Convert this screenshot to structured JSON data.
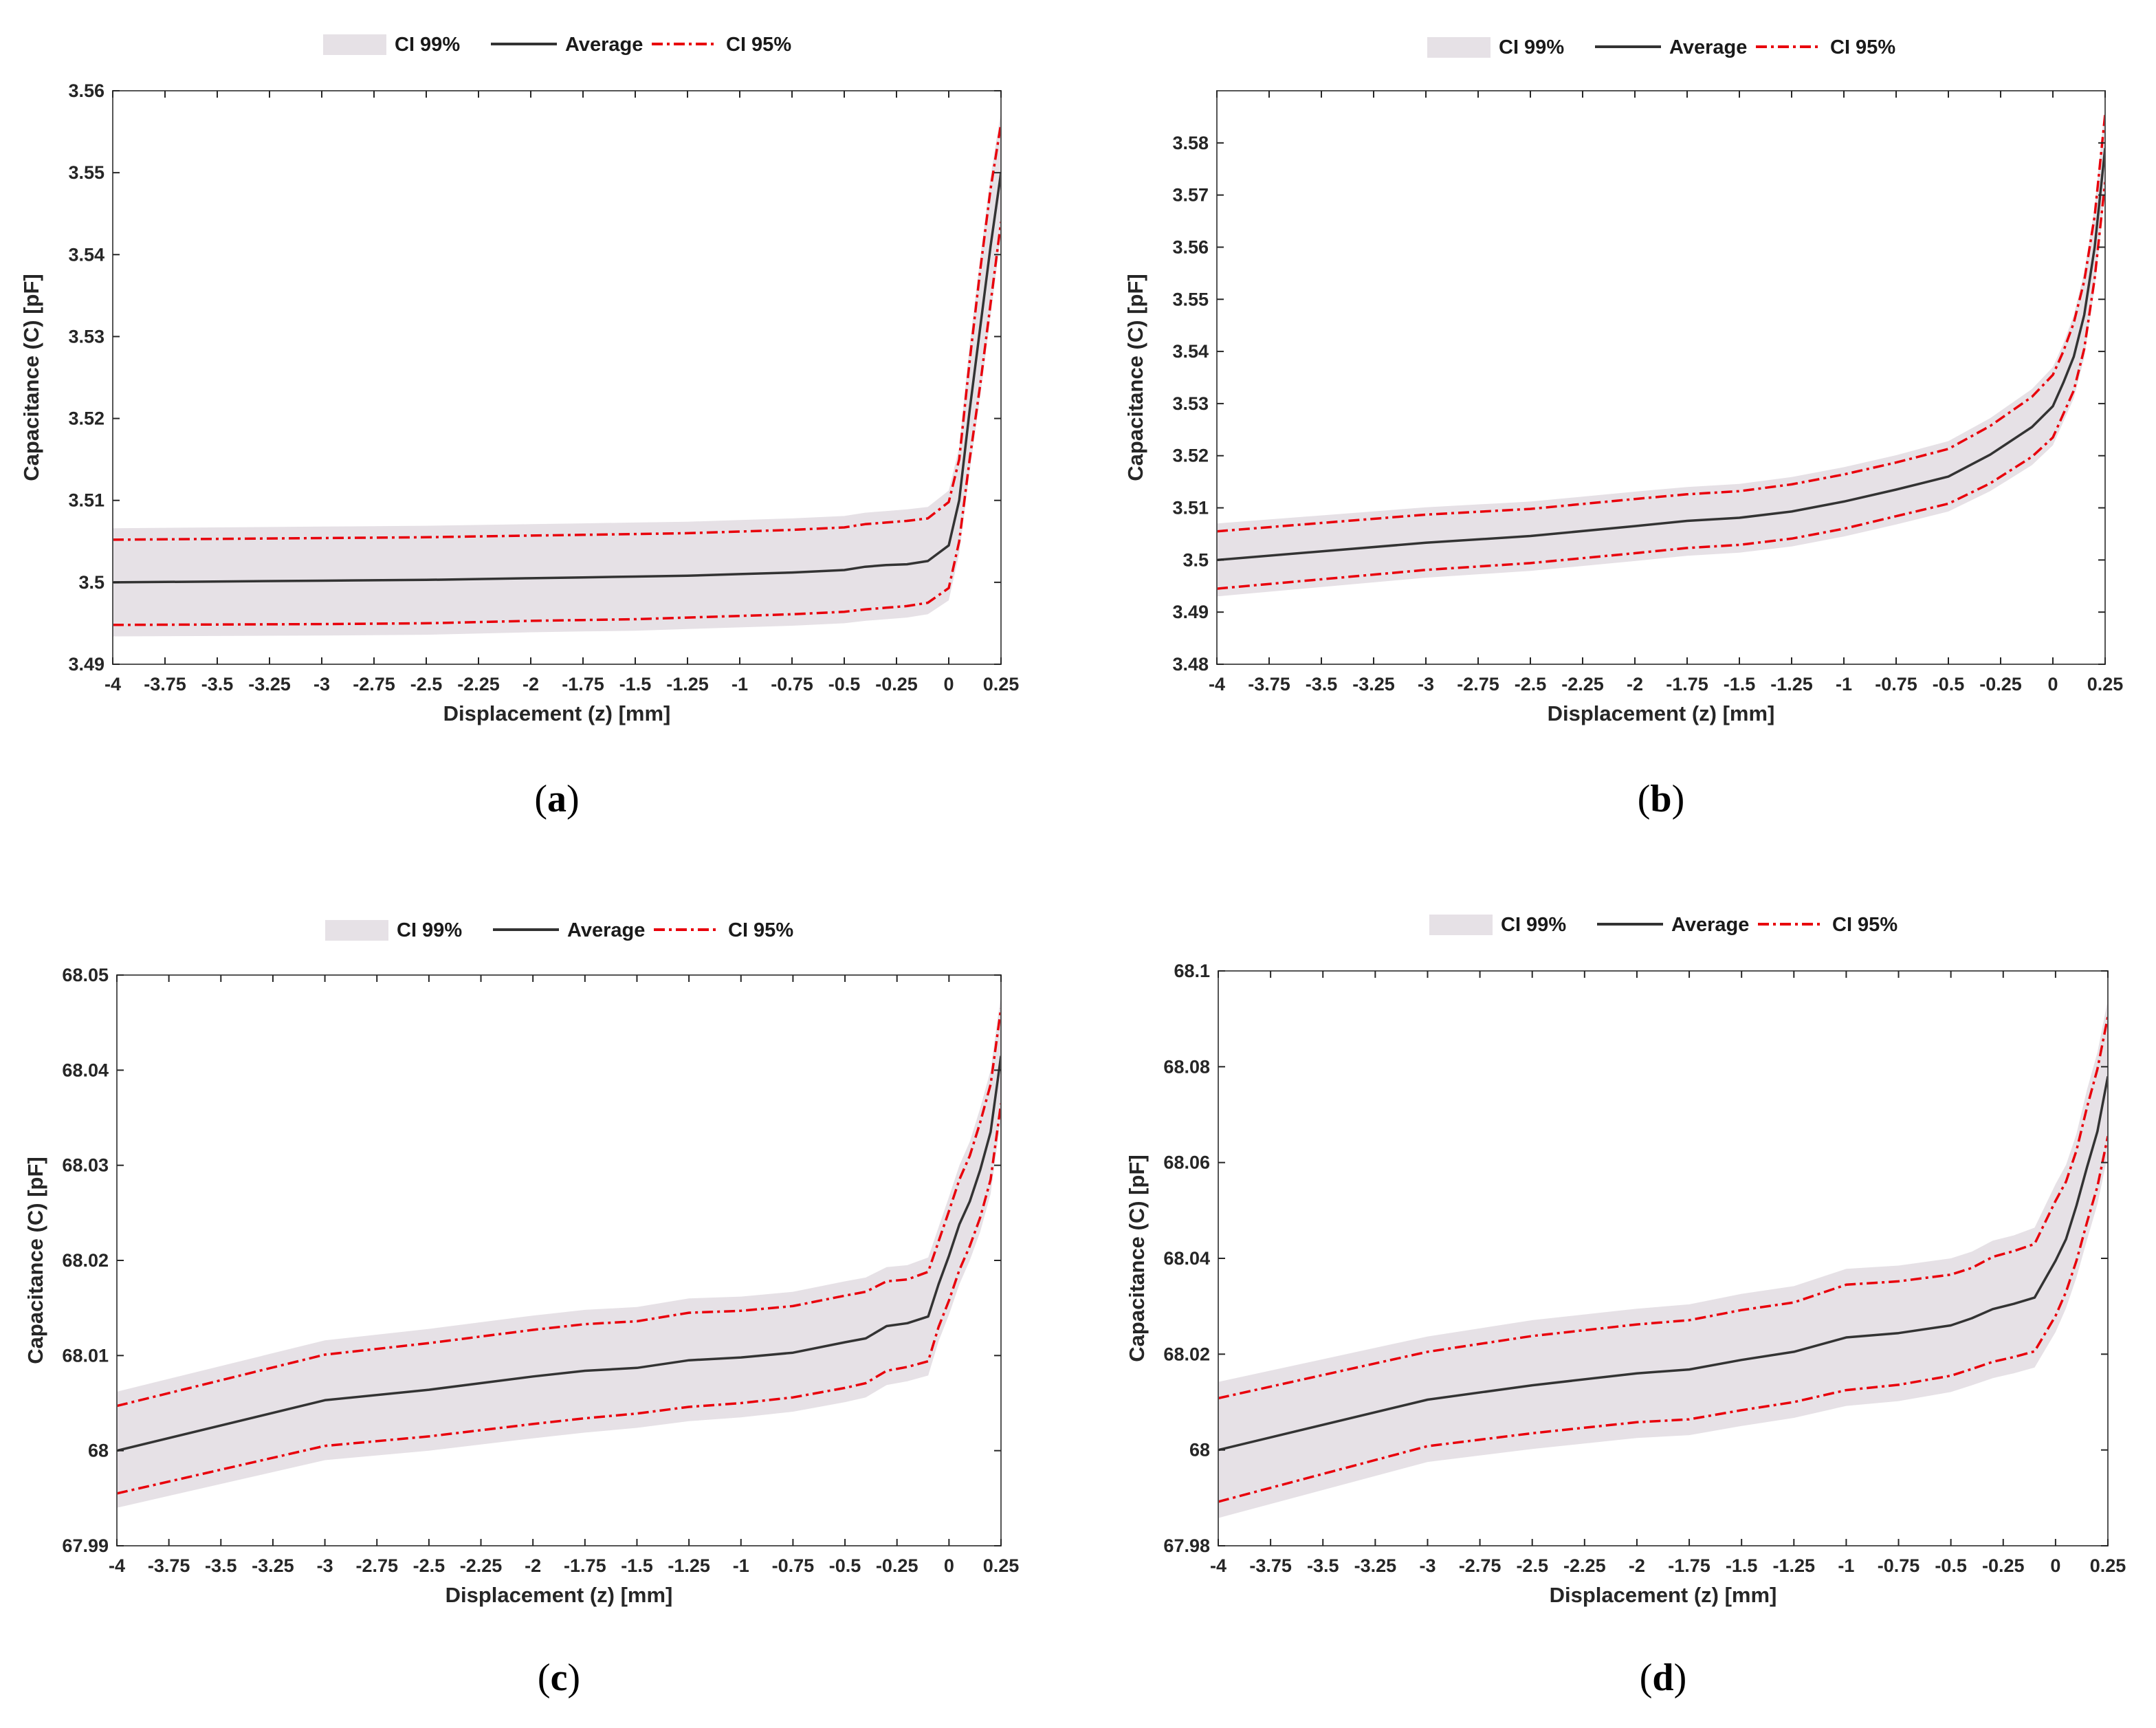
{
  "colors": {
    "band99": "#e6e1e6",
    "average": "#333333",
    "ci95": "#e8000b",
    "axis": "#262626",
    "frame": "#555555"
  },
  "legend": {
    "ci99": "CI 99%",
    "average": "Average",
    "ci95": "CI 95%"
  },
  "chart_data": [
    {
      "id": "a",
      "type": "line",
      "caption": "a",
      "xlabel": "Displacement (z) [mm]",
      "ylabel": "Capacitance (C) [pF]",
      "xlim": [
        -4,
        0.25
      ],
      "ylim": [
        3.49,
        3.56
      ],
      "xticks": [
        -4,
        -3.75,
        -3.5,
        -3.25,
        -3,
        -2.75,
        -2.5,
        -2.25,
        -2,
        -1.75,
        -1.5,
        -1.25,
        -1,
        -0.75,
        -0.5,
        -0.25,
        0,
        0.25
      ],
      "xtick_labels": [
        "-4",
        "-3.75",
        "-3.5",
        "-3.25",
        "-3",
        "-2.75",
        "-2.5",
        "-2.25",
        "-2",
        "-1.75",
        "-1.5",
        "-1.25",
        "-1",
        "-0.75",
        "-0.5",
        "-0.25",
        "0",
        "0.25"
      ],
      "yticks": [
        3.49,
        3.5,
        3.51,
        3.52,
        3.53,
        3.54,
        3.55,
        3.56
      ],
      "ytick_labels": [
        "3.49",
        "3.5",
        "3.51",
        "3.52",
        "3.53",
        "3.54",
        "3.55",
        "3.56"
      ],
      "x": [
        -4,
        -3,
        -2.5,
        -2,
        -1.75,
        -1.5,
        -1.25,
        -1,
        -0.75,
        -0.5,
        -0.4,
        -0.3,
        -0.2,
        -0.1,
        0,
        0.05,
        0.1,
        0.15,
        0.2,
        0.25
      ],
      "series": [
        {
          "name": "Average",
          "values": [
            3.5,
            3.5002,
            3.5003,
            3.5005,
            3.5006,
            3.5007,
            3.5008,
            3.501,
            3.5012,
            3.5015,
            3.5019,
            3.5021,
            3.5022,
            3.5026,
            3.5045,
            3.51,
            3.521,
            3.531,
            3.541,
            3.55
          ]
        },
        {
          "name": "CI 95% upper",
          "values": [
            3.5052,
            3.5054,
            3.5055,
            3.5057,
            3.5058,
            3.5059,
            3.506,
            3.5062,
            3.5064,
            3.5067,
            3.5071,
            3.5073,
            3.5075,
            3.5078,
            3.5098,
            3.515,
            3.527,
            3.538,
            3.548,
            3.556
          ]
        },
        {
          "name": "CI 95% lower",
          "values": [
            3.4948,
            3.4949,
            3.495,
            3.4953,
            3.4954,
            3.4955,
            3.4957,
            3.4959,
            3.4961,
            3.4964,
            3.4967,
            3.4969,
            3.4971,
            3.4975,
            3.4993,
            3.505,
            3.515,
            3.524,
            3.534,
            3.544
          ]
        },
        {
          "name": "CI 99% upper",
          "values": [
            3.5066,
            3.5068,
            3.5069,
            3.5071,
            3.5072,
            3.5073,
            3.5074,
            3.5076,
            3.5078,
            3.5081,
            3.5085,
            3.5087,
            3.5089,
            3.5092,
            3.5112,
            3.5165,
            3.529,
            3.5395,
            3.5495,
            3.5575
          ]
        },
        {
          "name": "CI 99% lower",
          "values": [
            3.4934,
            3.4935,
            3.4936,
            3.4939,
            3.494,
            3.4941,
            3.4943,
            3.4945,
            3.4947,
            3.495,
            3.4953,
            3.4955,
            3.4957,
            3.4961,
            3.4978,
            3.5035,
            3.5135,
            3.5225,
            3.5325,
            3.5425
          ]
        }
      ]
    },
    {
      "id": "b",
      "type": "line",
      "caption": "b",
      "xlabel": "Displacement (z) [mm]",
      "ylabel": "Capacitance (C) [pF]",
      "xlim": [
        -4,
        0.25
      ],
      "ylim": [
        3.48,
        3.59
      ],
      "xticks": [
        -4,
        -3.75,
        -3.5,
        -3.25,
        -3,
        -2.75,
        -2.5,
        -2.25,
        -2,
        -1.75,
        -1.5,
        -1.25,
        -1,
        -0.75,
        -0.5,
        -0.25,
        0,
        0.25
      ],
      "xtick_labels": [
        "-4",
        "-3.75",
        "-3.5",
        "-3.25",
        "-3",
        "-2.75",
        "-2.5",
        "-2.25",
        "-2",
        "-1.75",
        "-1.5",
        "-1.25",
        "-1",
        "-0.75",
        "-0.5",
        "-0.25",
        "0",
        "0.25"
      ],
      "yticks": [
        3.48,
        3.49,
        3.5,
        3.51,
        3.52,
        3.53,
        3.54,
        3.55,
        3.56,
        3.57,
        3.58
      ],
      "ytick_labels": [
        "3.48",
        "3.49",
        "3.5",
        "3.51",
        "3.52",
        "3.53",
        "3.54",
        "3.55",
        "3.56",
        "3.57",
        "3.58"
      ],
      "x": [
        -4,
        -3,
        -2.5,
        -2,
        -1.75,
        -1.5,
        -1.25,
        -1,
        -0.75,
        -0.5,
        -0.3,
        -0.1,
        0,
        0.05,
        0.1,
        0.15,
        0.2,
        0.25
      ],
      "series": [
        {
          "name": "Average",
          "values": [
            3.5,
            3.5033,
            3.5046,
            3.5065,
            3.5075,
            3.5081,
            3.5093,
            3.5112,
            3.5135,
            3.516,
            3.5202,
            3.5255,
            3.5295,
            3.534,
            3.539,
            3.547,
            3.56,
            3.579
          ]
        },
        {
          "name": "CI 95% upper",
          "values": [
            3.5055,
            3.5087,
            3.5098,
            3.5117,
            3.5126,
            3.5132,
            3.5145,
            3.5164,
            3.5187,
            3.5213,
            3.5257,
            3.5313,
            3.5355,
            3.54,
            3.5455,
            3.5535,
            3.566,
            3.5855
          ]
        },
        {
          "name": "CI 95% lower",
          "values": [
            3.4945,
            3.4981,
            3.4994,
            3.5013,
            3.5023,
            3.5029,
            3.5041,
            3.506,
            3.5084,
            3.5108,
            3.5147,
            3.5198,
            3.5235,
            3.528,
            3.5325,
            3.5405,
            3.554,
            3.5725
          ]
        },
        {
          "name": "CI 99% upper",
          "values": [
            3.507,
            3.5101,
            3.5112,
            3.5131,
            3.514,
            3.5146,
            3.5159,
            3.5178,
            3.5201,
            3.5228,
            3.5272,
            3.5328,
            3.537,
            3.5415,
            3.547,
            3.5552,
            3.5677,
            3.5872
          ]
        },
        {
          "name": "CI 99% lower",
          "values": [
            3.493,
            3.4966,
            3.4979,
            3.4998,
            3.5008,
            3.5014,
            3.5026,
            3.5045,
            3.5068,
            3.5093,
            3.5132,
            3.5182,
            3.522,
            3.5265,
            3.531,
            3.5388,
            3.5523,
            3.5708
          ]
        }
      ]
    },
    {
      "id": "c",
      "type": "line",
      "caption": "c",
      "xlabel": "Displacement (z) [mm]",
      "ylabel": "Capacitance (C) [pF]",
      "xlim": [
        -4,
        0.25
      ],
      "ylim": [
        67.99,
        68.05
      ],
      "xticks": [
        -4,
        -3.75,
        -3.5,
        -3.25,
        -3,
        -2.75,
        -2.5,
        -2.25,
        -2,
        -1.75,
        -1.5,
        -1.25,
        -1,
        -0.75,
        -0.5,
        -0.25,
        0,
        0.25
      ],
      "xtick_labels": [
        "-4",
        "-3.75",
        "-3.5",
        "-3.25",
        "-3",
        "-2.75",
        "-2.5",
        "-2.25",
        "-2",
        "-1.75",
        "-1.5",
        "-1.25",
        "-1",
        "-0.75",
        "-0.5",
        "-0.25",
        "0",
        "0.25"
      ],
      "yticks": [
        67.99,
        68,
        68.01,
        68.02,
        68.03,
        68.04,
        68.05
      ],
      "ytick_labels": [
        "67.99",
        "68",
        "68.01",
        "68.02",
        "68.03",
        "68.04",
        "68.05"
      ],
      "x": [
        -4,
        -3,
        -2.5,
        -2,
        -1.75,
        -1.5,
        -1.25,
        -1,
        -0.75,
        -0.5,
        -0.4,
        -0.3,
        -0.2,
        -0.1,
        -0.05,
        0,
        0.05,
        0.1,
        0.15,
        0.2,
        0.25
      ],
      "series": [
        {
          "name": "Average",
          "values": [
            68,
            68.0053,
            68.0064,
            68.0078,
            68.0084,
            68.0087,
            68.0095,
            68.0098,
            68.0103,
            68.0114,
            68.0118,
            68.0131,
            68.0134,
            68.0141,
            68.0175,
            68.0205,
            68.0238,
            68.0262,
            68.0295,
            68.0335,
            68.0415
          ]
        },
        {
          "name": "CI 95% upper",
          "values": [
            68.0047,
            68.0101,
            68.0113,
            68.0127,
            68.0133,
            68.0136,
            68.0145,
            68.0147,
            68.0152,
            68.0163,
            68.0167,
            68.0178,
            68.018,
            68.0188,
            68.022,
            68.0252,
            68.0285,
            68.031,
            68.0345,
            68.0385,
            68.0465
          ]
        },
        {
          "name": "CI 95% lower",
          "values": [
            67.9955,
            68.0005,
            68.0015,
            68.0028,
            68.0034,
            68.0039,
            68.0046,
            68.005,
            68.0056,
            68.0066,
            68.0071,
            68.0084,
            68.0088,
            68.0094,
            68.013,
            68.0158,
            68.019,
            68.0215,
            68.0245,
            68.0285,
            68.0365
          ]
        },
        {
          "name": "CI 99% upper",
          "values": [
            68.0062,
            68.0116,
            68.0128,
            68.0142,
            68.0148,
            68.0151,
            68.016,
            68.0162,
            68.0167,
            68.0178,
            68.0182,
            68.0193,
            68.0195,
            68.0203,
            68.0235,
            68.0267,
            68.03,
            68.0325,
            68.036,
            68.04,
            68.048
          ]
        },
        {
          "name": "CI 99% lower",
          "values": [
            67.994,
            67.999,
            68.0,
            68.0013,
            68.0019,
            68.0024,
            68.0031,
            68.0035,
            68.0041,
            68.0051,
            68.0056,
            68.0069,
            68.0073,
            68.0079,
            68.0115,
            68.0143,
            68.0175,
            68.02,
            68.023,
            68.027,
            68.035
          ]
        }
      ]
    },
    {
      "id": "d",
      "type": "line",
      "caption": "d",
      "xlabel": "Displacement (z) [mm]",
      "ylabel": "Capacitance (C) [pF]",
      "xlim": [
        -4,
        0.25
      ],
      "ylim": [
        67.98,
        68.1
      ],
      "xticks": [
        -4,
        -3.75,
        -3.5,
        -3.25,
        -3,
        -2.75,
        -2.5,
        -2.25,
        -2,
        -1.75,
        -1.5,
        -1.25,
        -1,
        -0.75,
        -0.5,
        -0.25,
        0,
        0.25
      ],
      "xtick_labels": [
        "-4",
        "-3.75",
        "-3.5",
        "-3.25",
        "-3",
        "-2.75",
        "-2.5",
        "-2.25",
        "-2",
        "-1.75",
        "-1.5",
        "-1.25",
        "-1",
        "-0.75",
        "-0.5",
        "-0.25",
        "0",
        "0.25"
      ],
      "yticks": [
        67.98,
        68,
        68.02,
        68.04,
        68.06,
        68.08,
        68.1
      ],
      "ytick_labels": [
        "67.98",
        "68",
        "68.02",
        "68.04",
        "68.06",
        "68.08",
        "68.1"
      ],
      "x": [
        -4,
        -3,
        -2.5,
        -2,
        -1.75,
        -1.5,
        -1.25,
        -1,
        -0.75,
        -0.5,
        -0.4,
        -0.3,
        -0.2,
        -0.1,
        0,
        0.05,
        0.1,
        0.15,
        0.2,
        0.25
      ],
      "series": [
        {
          "name": "Average",
          "values": [
            68,
            68.0105,
            68.0135,
            68.016,
            68.0168,
            68.0188,
            68.0205,
            68.0235,
            68.0244,
            68.026,
            68.0275,
            68.0294,
            68.0305,
            68.0318,
            68.0395,
            68.044,
            68.051,
            68.059,
            68.0665,
            68.078
          ]
        },
        {
          "name": "CI 95% upper",
          "values": [
            68.0108,
            68.0205,
            68.0238,
            68.0262,
            68.0271,
            68.0292,
            68.0308,
            68.0345,
            68.0352,
            68.0366,
            68.038,
            68.0403,
            68.0415,
            68.043,
            68.052,
            68.056,
            68.0625,
            68.0715,
            68.0795,
            68.0905
          ]
        },
        {
          "name": "CI 95% lower",
          "values": [
            67.9892,
            68.0008,
            68.0035,
            68.0058,
            68.0064,
            68.0083,
            68.01,
            68.0125,
            68.0136,
            68.0155,
            68.0169,
            68.0184,
            68.0194,
            68.0206,
            68.028,
            68.033,
            68.0395,
            68.0475,
            68.055,
            68.0655
          ]
        },
        {
          "name": "CI 99% upper",
          "values": [
            68.0142,
            68.0237,
            68.0271,
            68.0295,
            68.0304,
            68.0326,
            68.0342,
            68.0378,
            68.0385,
            68.04,
            68.0414,
            68.0437,
            68.0448,
            68.0464,
            68.0555,
            68.0595,
            68.066,
            68.0752,
            68.083,
            68.094
          ]
        },
        {
          "name": "CI 99% lower",
          "values": [
            67.9858,
            67.9975,
            68.0002,
            68.0025,
            68.0031,
            68.005,
            68.0067,
            68.0092,
            68.0102,
            68.0121,
            68.0135,
            68.015,
            68.016,
            68.0172,
            68.0246,
            68.0296,
            68.036,
            68.0438,
            68.0513,
            68.0617
          ]
        }
      ]
    }
  ]
}
